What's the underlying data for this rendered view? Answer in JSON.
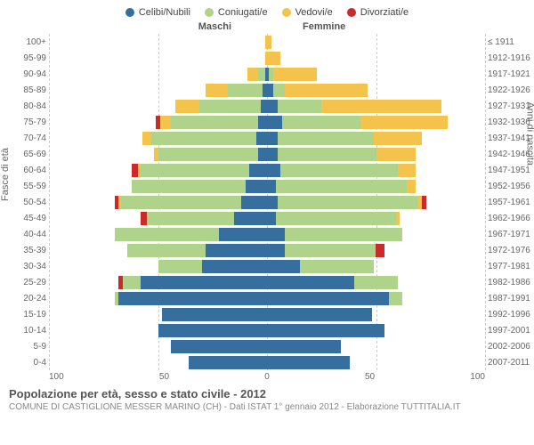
{
  "colors": {
    "celibi": "#366f9e",
    "coniugati": "#b0d38c",
    "vedovi": "#f4c34b",
    "divorziati": "#c92a2a",
    "grid": "#cccccc",
    "text": "#666666",
    "bg": "#ffffff"
  },
  "legend": [
    {
      "label": "Celibi/Nubili",
      "color": "#366f9e"
    },
    {
      "label": "Coniugati/e",
      "color": "#b0d38c"
    },
    {
      "label": "Vedovi/e",
      "color": "#f4c34b"
    },
    {
      "label": "Divorziati/e",
      "color": "#c92a2a"
    }
  ],
  "headers": {
    "left": "Maschi",
    "right": "Femmine"
  },
  "axes": {
    "xmax": 100,
    "xticks_left": [
      100,
      50,
      0
    ],
    "xticks_right": [
      50,
      100
    ],
    "ytitle_left": "Fasce di età",
    "ytitle_right": "Anni di nascita",
    "label_fontsize": 10
  },
  "rows": [
    {
      "age": "100+",
      "birth": "≤ 1911",
      "m": {
        "c": 0,
        "co": 0,
        "v": 1,
        "d": 0
      },
      "f": {
        "c": 0,
        "co": 0,
        "v": 2,
        "d": 0
      }
    },
    {
      "age": "95-99",
      "birth": "1912-1916",
      "m": {
        "c": 0,
        "co": 0,
        "v": 1,
        "d": 0
      },
      "f": {
        "c": 0,
        "co": 0,
        "v": 6,
        "d": 0
      }
    },
    {
      "age": "90-94",
      "birth": "1917-1921",
      "m": {
        "c": 1,
        "co": 3,
        "v": 5,
        "d": 0
      },
      "f": {
        "c": 1,
        "co": 2,
        "v": 20,
        "d": 0
      }
    },
    {
      "age": "85-89",
      "birth": "1922-1926",
      "m": {
        "c": 2,
        "co": 16,
        "v": 10,
        "d": 0
      },
      "f": {
        "c": 3,
        "co": 5,
        "v": 38,
        "d": 0
      }
    },
    {
      "age": "80-84",
      "birth": "1927-1931",
      "m": {
        "c": 3,
        "co": 28,
        "v": 11,
        "d": 0
      },
      "f": {
        "c": 5,
        "co": 20,
        "v": 55,
        "d": 0
      }
    },
    {
      "age": "75-79",
      "birth": "1932-1936",
      "m": {
        "c": 4,
        "co": 40,
        "v": 5,
        "d": 2
      },
      "f": {
        "c": 7,
        "co": 36,
        "v": 40,
        "d": 0
      }
    },
    {
      "age": "70-74",
      "birth": "1937-1941",
      "m": {
        "c": 5,
        "co": 48,
        "v": 4,
        "d": 0
      },
      "f": {
        "c": 5,
        "co": 44,
        "v": 22,
        "d": 0
      }
    },
    {
      "age": "65-69",
      "birth": "1942-1946",
      "m": {
        "c": 4,
        "co": 46,
        "v": 2,
        "d": 0
      },
      "f": {
        "c": 5,
        "co": 45,
        "v": 18,
        "d": 0
      }
    },
    {
      "age": "60-64",
      "birth": "1947-1951",
      "m": {
        "c": 8,
        "co": 50,
        "v": 1,
        "d": 3
      },
      "f": {
        "c": 6,
        "co": 54,
        "v": 8,
        "d": 0
      }
    },
    {
      "age": "55-59",
      "birth": "1952-1956",
      "m": {
        "c": 10,
        "co": 52,
        "v": 0,
        "d": 0
      },
      "f": {
        "c": 4,
        "co": 60,
        "v": 4,
        "d": 0
      }
    },
    {
      "age": "50-54",
      "birth": "1957-1961",
      "m": {
        "c": 12,
        "co": 55,
        "v": 1,
        "d": 2
      },
      "f": {
        "c": 5,
        "co": 64,
        "v": 2,
        "d": 2
      }
    },
    {
      "age": "45-49",
      "birth": "1962-1966",
      "m": {
        "c": 15,
        "co": 40,
        "v": 0,
        "d": 3
      },
      "f": {
        "c": 4,
        "co": 55,
        "v": 2,
        "d": 0
      }
    },
    {
      "age": "40-44",
      "birth": "1967-1971",
      "m": {
        "c": 22,
        "co": 48,
        "v": 0,
        "d": 0
      },
      "f": {
        "c": 8,
        "co": 54,
        "v": 0,
        "d": 0
      }
    },
    {
      "age": "35-39",
      "birth": "1972-1976",
      "m": {
        "c": 28,
        "co": 36,
        "v": 0,
        "d": 0
      },
      "f": {
        "c": 8,
        "co": 42,
        "v": 0,
        "d": 4
      }
    },
    {
      "age": "30-34",
      "birth": "1977-1981",
      "m": {
        "c": 30,
        "co": 20,
        "v": 0,
        "d": 0
      },
      "f": {
        "c": 15,
        "co": 34,
        "v": 0,
        "d": 0
      }
    },
    {
      "age": "25-29",
      "birth": "1982-1986",
      "m": {
        "c": 58,
        "co": 8,
        "v": 0,
        "d": 2
      },
      "f": {
        "c": 40,
        "co": 20,
        "v": 0,
        "d": 0
      }
    },
    {
      "age": "20-24",
      "birth": "1987-1991",
      "m": {
        "c": 68,
        "co": 2,
        "v": 0,
        "d": 0
      },
      "f": {
        "c": 56,
        "co": 6,
        "v": 0,
        "d": 0
      }
    },
    {
      "age": "15-19",
      "birth": "1992-1996",
      "m": {
        "c": 48,
        "co": 0,
        "v": 0,
        "d": 0
      },
      "f": {
        "c": 48,
        "co": 0,
        "v": 0,
        "d": 0
      }
    },
    {
      "age": "10-14",
      "birth": "1997-2001",
      "m": {
        "c": 50,
        "co": 0,
        "v": 0,
        "d": 0
      },
      "f": {
        "c": 54,
        "co": 0,
        "v": 0,
        "d": 0
      }
    },
    {
      "age": "5-9",
      "birth": "2002-2006",
      "m": {
        "c": 44,
        "co": 0,
        "v": 0,
        "d": 0
      },
      "f": {
        "c": 34,
        "co": 0,
        "v": 0,
        "d": 0
      }
    },
    {
      "age": "0-4",
      "birth": "2007-2011",
      "m": {
        "c": 36,
        "co": 0,
        "v": 0,
        "d": 0
      },
      "f": {
        "c": 38,
        "co": 0,
        "v": 0,
        "d": 0
      }
    }
  ],
  "footer": {
    "title": "Popolazione per età, sesso e stato civile - 2012",
    "subtitle": "COMUNE DI CASTIGLIONE MESSER MARINO (CH) - Dati ISTAT 1° gennaio 2012 - Elaborazione TUTTITALIA.IT"
  }
}
